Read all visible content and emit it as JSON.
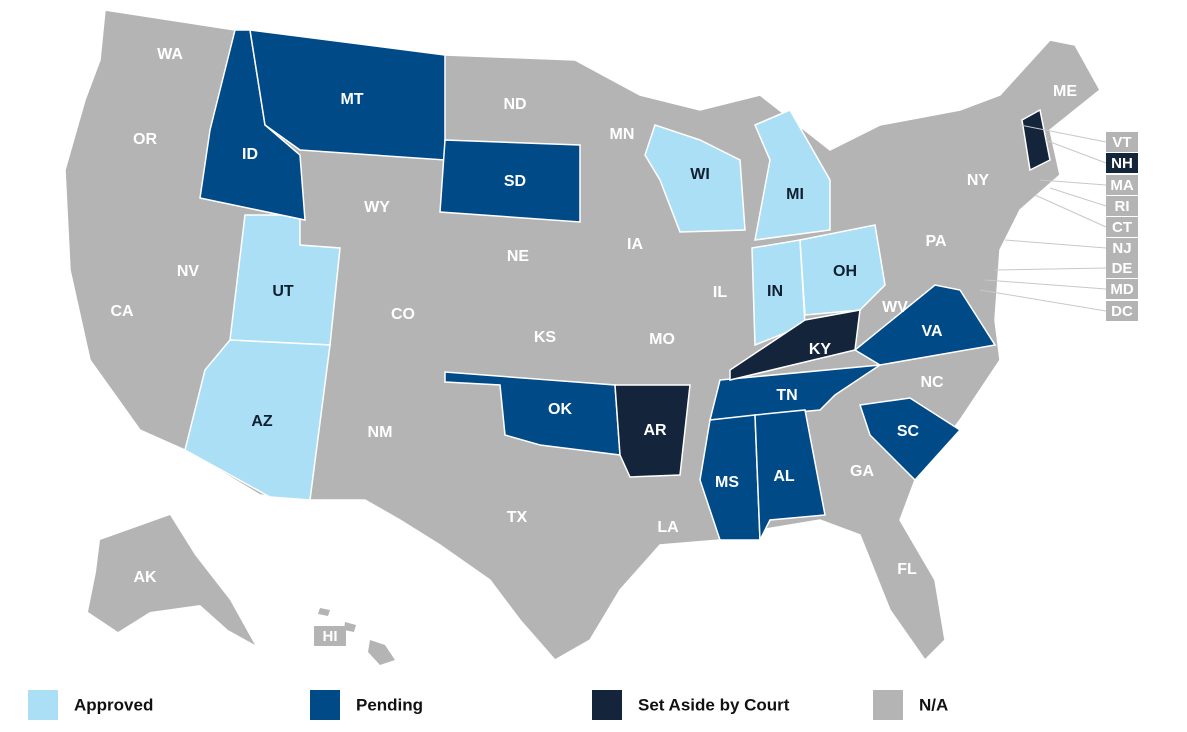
{
  "legend": [
    {
      "label": "Approved",
      "color": "#aadff6",
      "states": [
        "UT",
        "AZ",
        "WI",
        "MI",
        "IN",
        "OH"
      ]
    },
    {
      "label": "Pending",
      "color": "#004a87",
      "states": [
        "ID",
        "MT",
        "SD",
        "OK",
        "TN",
        "MS",
        "AL",
        "SC",
        "VA"
      ]
    },
    {
      "label": "Set Aside by Court",
      "color": "#14243a",
      "states": [
        "AR",
        "KY",
        "NH"
      ]
    },
    {
      "label": "N/A",
      "color": "#b4b4b4",
      "states": [
        "WA",
        "OR",
        "CA",
        "NV",
        "WY",
        "CO",
        "NM",
        "TX",
        "ND",
        "NE",
        "KS",
        "MN",
        "IA",
        "MO",
        "IL",
        "LA",
        "GA",
        "FL",
        "NC",
        "WV",
        "PA",
        "NY",
        "ME",
        "AK",
        "VT",
        "MA",
        "RI",
        "CT",
        "NJ",
        "DE",
        "MD",
        "DC",
        "HI"
      ]
    }
  ]
}
